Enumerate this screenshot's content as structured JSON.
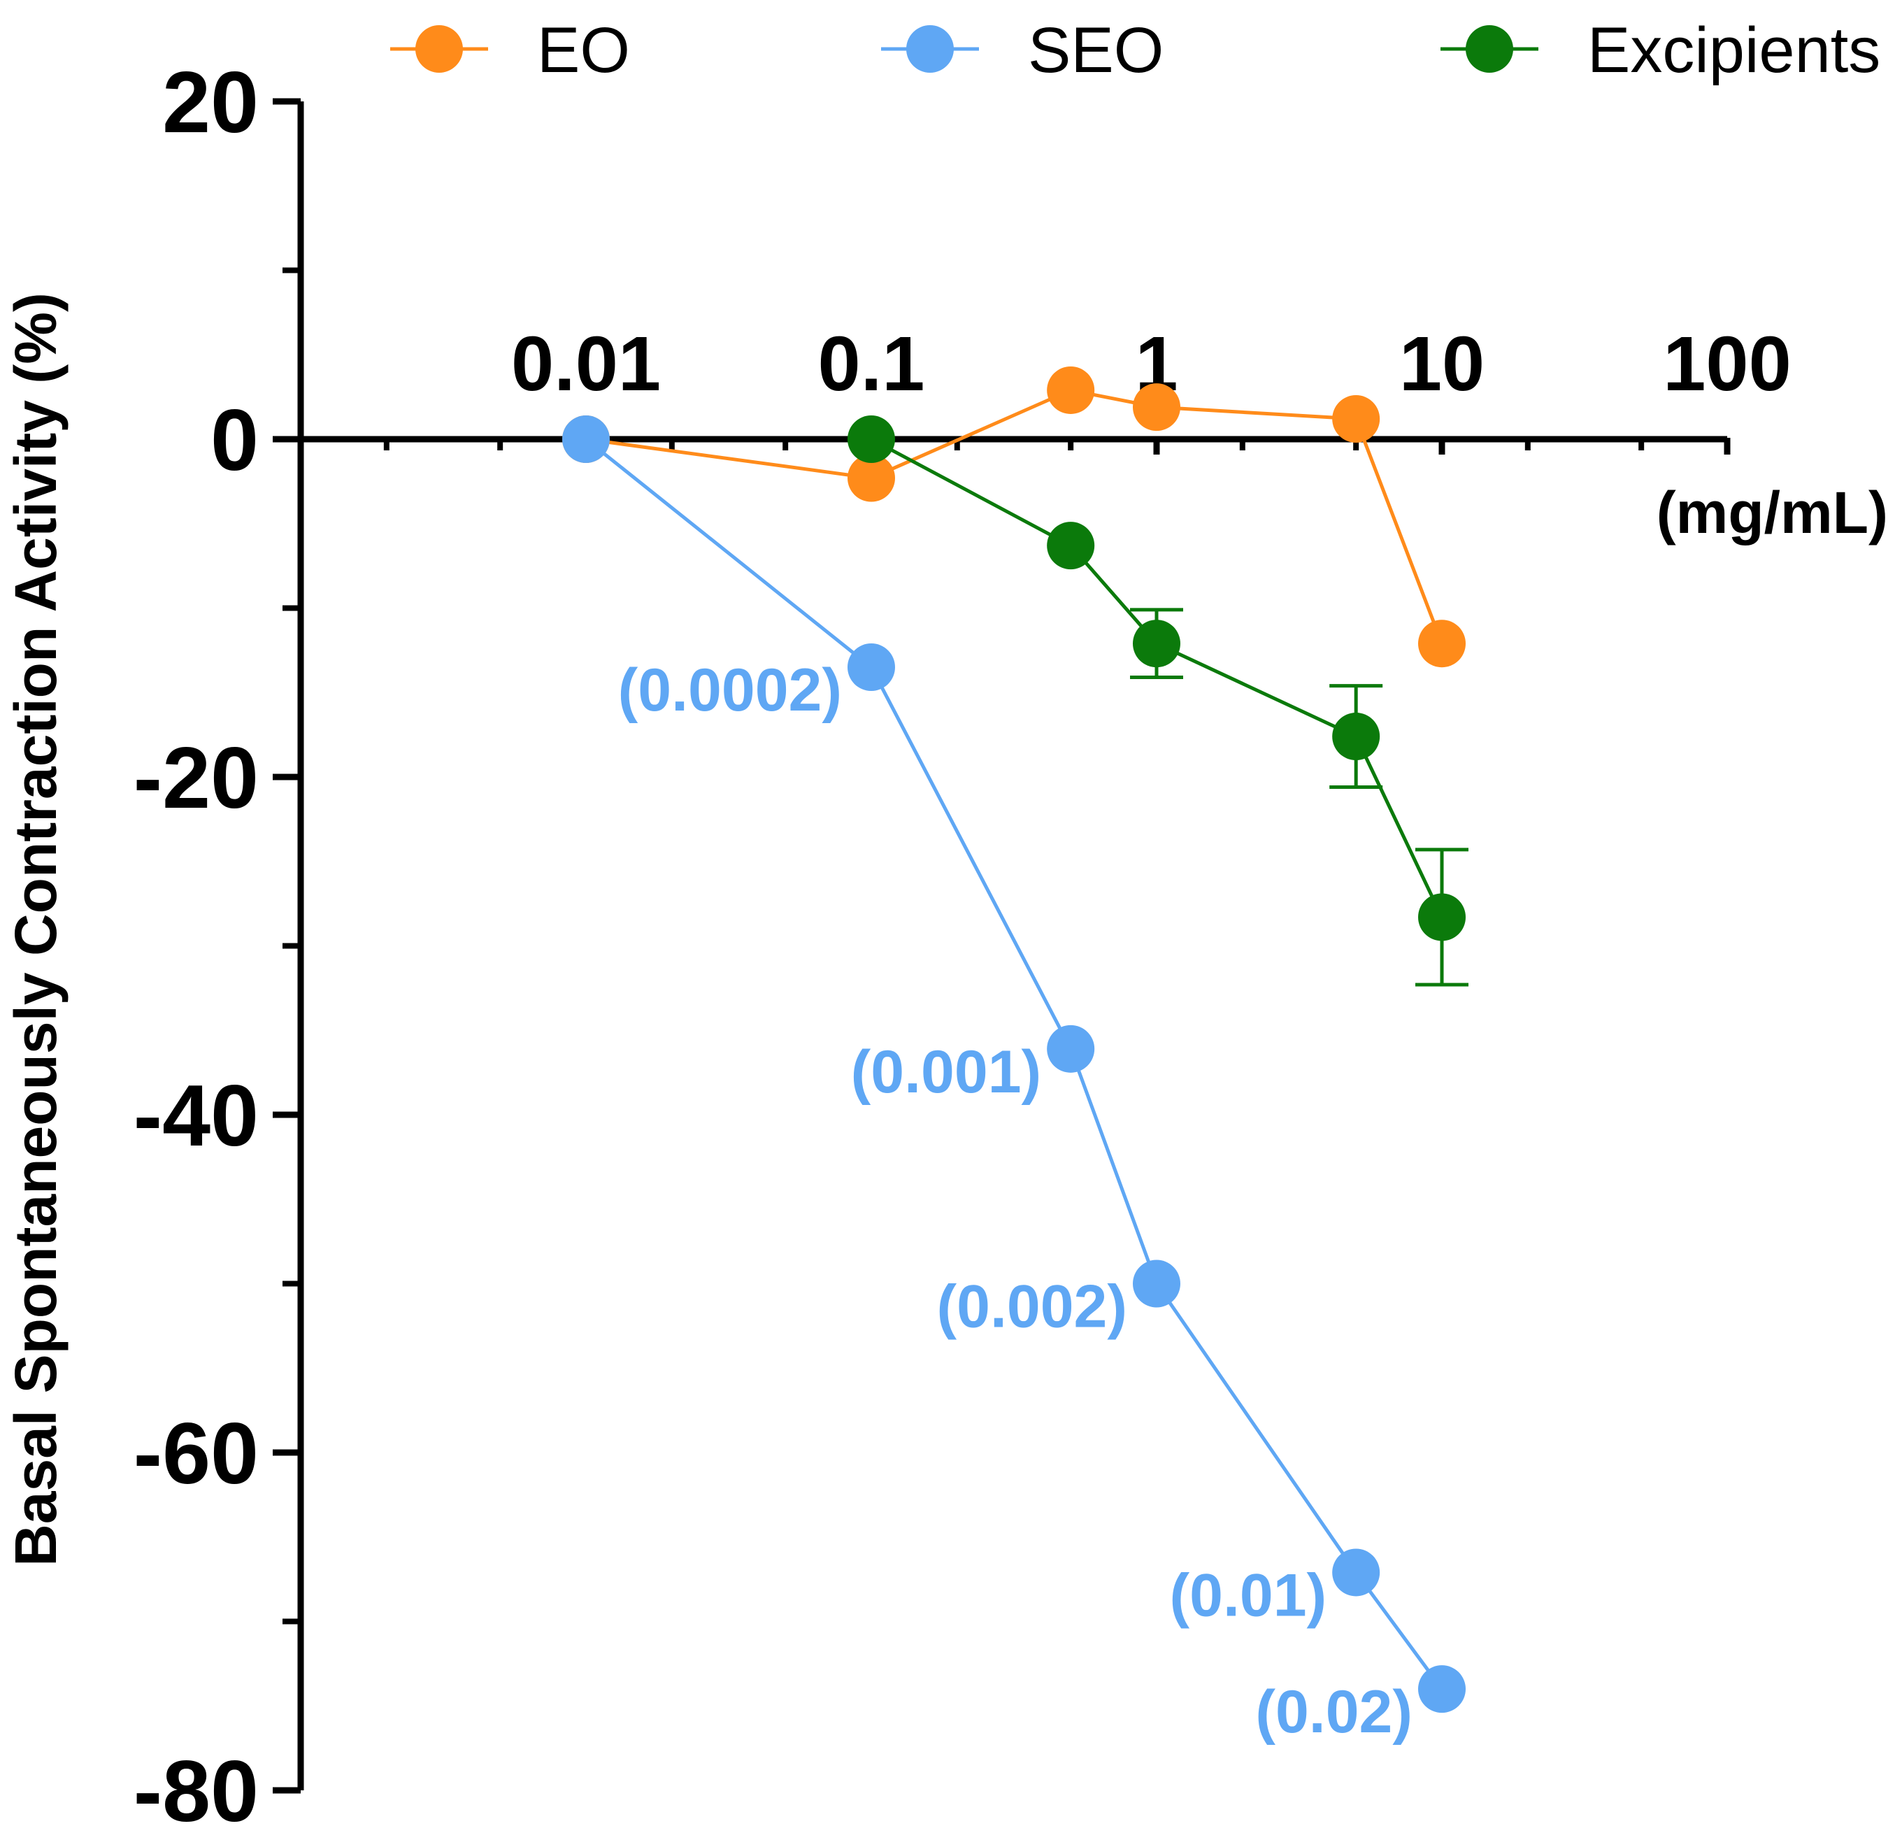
{
  "chart_data": {
    "type": "line",
    "title": "",
    "ylabel": "Basal Spontaneously Contraction Activity (%)",
    "xlabel": "(mg/mL)",
    "x_scale": "log",
    "xlim": [
      0.001,
      100
    ],
    "ylim": [
      -80,
      20
    ],
    "y_ticks": [
      20,
      0,
      -20,
      -40,
      -60,
      -80
    ],
    "y_tick_labels": [
      "20",
      "0",
      "-20",
      "-40",
      "-60",
      "-80"
    ],
    "x_tick_values": [
      0.01,
      0.1,
      1,
      10,
      100
    ],
    "x_tick_labels": [
      "0.01",
      "0.1",
      "1",
      "10",
      "100"
    ],
    "grid": false,
    "legend_position": "top",
    "series": [
      {
        "name": "EO",
        "color": "#FF8B1A",
        "x": [
          0.01,
          0.1,
          0.5,
          1,
          5,
          10
        ],
        "y": [
          0,
          -2.3,
          2.9,
          1.9,
          1.2,
          -12.1
        ]
      },
      {
        "name": "SEO",
        "color": "#5FA7F4",
        "x": [
          0.01,
          0.1,
          0.5,
          1,
          5,
          10
        ],
        "y": [
          0,
          -13.5,
          -36.1,
          -50,
          -67.1,
          -74
        ],
        "point_labels": [
          "",
          "(0.0002)",
          "(0.001)",
          "(0.002)",
          "(0.01)",
          "(0.02)"
        ]
      },
      {
        "name": "Excipients",
        "color": "#0B7A0B",
        "x": [
          0.1,
          0.5,
          1,
          5,
          10
        ],
        "y": [
          0,
          -6.3,
          -12.1,
          -17.6,
          -28.3
        ],
        "error": [
          0,
          0,
          2,
          3,
          4
        ]
      }
    ]
  }
}
